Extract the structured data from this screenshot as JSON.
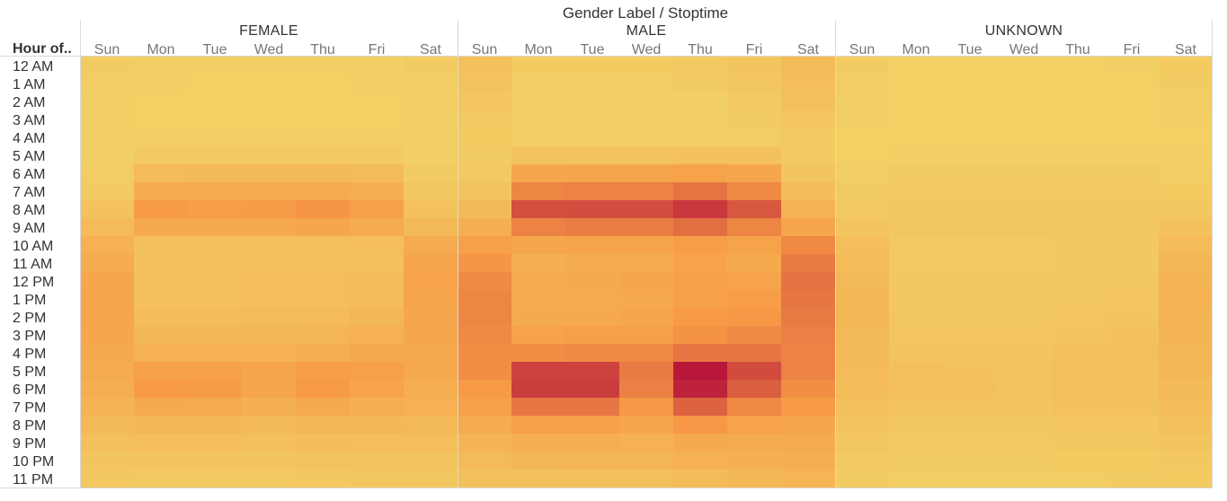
{
  "chart_data": {
    "type": "heatmap",
    "title": "",
    "column_title": "Gender Label / Stoptime",
    "row_title": "Hour of..",
    "groups": [
      "FEMALE",
      "MALE",
      "UNKNOWN"
    ],
    "days": [
      "Sun",
      "Mon",
      "Tue",
      "Wed",
      "Thu",
      "Fri",
      "Sat"
    ],
    "hours": [
      "12 AM",
      "1 AM",
      "2 AM",
      "3 AM",
      "4 AM",
      "5 AM",
      "6 AM",
      "7 AM",
      "8 AM",
      "9 AM",
      "10 AM",
      "11 AM",
      "12 PM",
      "1 PM",
      "2 PM",
      "3 PM",
      "4 PM",
      "5 PM",
      "6 PM",
      "7 PM",
      "8 PM",
      "9 PM",
      "10 PM",
      "11 PM"
    ],
    "color_scale": {
      "low": "#f2d165",
      "mid": "#f79a45",
      "high": "#b8173a",
      "min": 0,
      "max": 100
    },
    "legend": "none",
    "values": {
      "FEMALE": [
        [
          4,
          2,
          2,
          2,
          2,
          2,
          4
        ],
        [
          3,
          2,
          1,
          1,
          1,
          2,
          3
        ],
        [
          2,
          1,
          1,
          1,
          1,
          1,
          2
        ],
        [
          2,
          1,
          1,
          1,
          1,
          1,
          2
        ],
        [
          2,
          2,
          2,
          2,
          2,
          2,
          2
        ],
        [
          2,
          6,
          6,
          6,
          6,
          6,
          2
        ],
        [
          3,
          18,
          19,
          19,
          19,
          17,
          4
        ],
        [
          6,
          30,
          31,
          31,
          31,
          28,
          8
        ],
        [
          12,
          44,
          42,
          43,
          47,
          40,
          12
        ],
        [
          18,
          33,
          33,
          33,
          34,
          31,
          20
        ],
        [
          26,
          14,
          14,
          14,
          14,
          15,
          30
        ],
        [
          30,
          12,
          12,
          12,
          12,
          14,
          36
        ],
        [
          34,
          14,
          14,
          15,
          15,
          17,
          38
        ],
        [
          35,
          14,
          14,
          15,
          15,
          18,
          36
        ],
        [
          35,
          16,
          16,
          17,
          18,
          21,
          35
        ],
        [
          34,
          21,
          21,
          21,
          22,
          26,
          34
        ],
        [
          32,
          26,
          26,
          26,
          28,
          32,
          33
        ],
        [
          31,
          40,
          39,
          36,
          42,
          39,
          32
        ],
        [
          28,
          44,
          43,
          35,
          45,
          38,
          29
        ],
        [
          24,
          32,
          31,
          27,
          32,
          28,
          26
        ],
        [
          19,
          21,
          21,
          19,
          22,
          21,
          20
        ],
        [
          14,
          15,
          15,
          14,
          16,
          15,
          15
        ],
        [
          10,
          10,
          10,
          10,
          11,
          11,
          11
        ],
        [
          7,
          6,
          6,
          6,
          7,
          8,
          8
        ]
      ],
      "MALE": [
        [
          14,
          5,
          5,
          5,
          6,
          10,
          18
        ],
        [
          11,
          3,
          3,
          3,
          4,
          8,
          15
        ],
        [
          9,
          2,
          2,
          2,
          2,
          6,
          13
        ],
        [
          6,
          2,
          2,
          2,
          2,
          4,
          9
        ],
        [
          5,
          3,
          3,
          3,
          3,
          3,
          6
        ],
        [
          4,
          11,
          11,
          11,
          12,
          12,
          6
        ],
        [
          6,
          34,
          36,
          36,
          38,
          34,
          10
        ],
        [
          11,
          54,
          55,
          55,
          61,
          52,
          16
        ],
        [
          19,
          76,
          77,
          77,
          86,
          73,
          25
        ],
        [
          29,
          55,
          57,
          57,
          63,
          54,
          36
        ],
        [
          40,
          34,
          36,
          36,
          42,
          38,
          52
        ],
        [
          47,
          28,
          30,
          30,
          38,
          32,
          58
        ],
        [
          52,
          30,
          32,
          34,
          40,
          38,
          62
        ],
        [
          54,
          30,
          31,
          33,
          40,
          42,
          60
        ],
        [
          54,
          32,
          33,
          35,
          44,
          46,
          58
        ],
        [
          52,
          38,
          40,
          40,
          48,
          52,
          56
        ],
        [
          50,
          50,
          52,
          52,
          60,
          60,
          55
        ],
        [
          50,
          82,
          82,
          58,
          100,
          78,
          55
        ],
        [
          45,
          84,
          84,
          56,
          95,
          70,
          50
        ],
        [
          40,
          60,
          60,
          46,
          68,
          52,
          44
        ],
        [
          31,
          40,
          40,
          35,
          46,
          38,
          36
        ],
        [
          24,
          28,
          28,
          26,
          32,
          30,
          30
        ],
        [
          18,
          21,
          22,
          22,
          26,
          27,
          28
        ],
        [
          13,
          13,
          14,
          14,
          17,
          21,
          23
        ]
      ],
      "UNKNOWN": [
        [
          4,
          1,
          1,
          1,
          1,
          2,
          5
        ],
        [
          3,
          1,
          1,
          1,
          1,
          1,
          4
        ],
        [
          2,
          1,
          1,
          1,
          1,
          1,
          3
        ],
        [
          2,
          1,
          1,
          1,
          1,
          1,
          2
        ],
        [
          1,
          1,
          1,
          1,
          1,
          1,
          1
        ],
        [
          1,
          2,
          2,
          2,
          2,
          2,
          2
        ],
        [
          2,
          4,
          4,
          4,
          4,
          4,
          3
        ],
        [
          4,
          6,
          6,
          6,
          6,
          6,
          5
        ],
        [
          6,
          8,
          8,
          8,
          8,
          8,
          8
        ],
        [
          10,
          8,
          8,
          8,
          8,
          8,
          12
        ],
        [
          15,
          6,
          6,
          6,
          7,
          7,
          18
        ],
        [
          18,
          6,
          6,
          6,
          7,
          7,
          22
        ],
        [
          20,
          7,
          7,
          7,
          8,
          8,
          24
        ],
        [
          21,
          7,
          7,
          7,
          8,
          9,
          25
        ],
        [
          21,
          8,
          7,
          8,
          9,
          10,
          24
        ],
        [
          20,
          9,
          9,
          9,
          10,
          12,
          24
        ],
        [
          19,
          10,
          10,
          10,
          12,
          14,
          22
        ],
        [
          18,
          13,
          12,
          11,
          14,
          14,
          21
        ],
        [
          16,
          14,
          13,
          11,
          14,
          13,
          19
        ],
        [
          14,
          11,
          11,
          10,
          12,
          12,
          16
        ],
        [
          11,
          8,
          8,
          8,
          9,
          9,
          13
        ],
        [
          8,
          6,
          6,
          6,
          7,
          7,
          10
        ],
        [
          6,
          4,
          4,
          4,
          5,
          5,
          7
        ],
        [
          4,
          3,
          3,
          3,
          3,
          4,
          5
        ]
      ]
    }
  }
}
